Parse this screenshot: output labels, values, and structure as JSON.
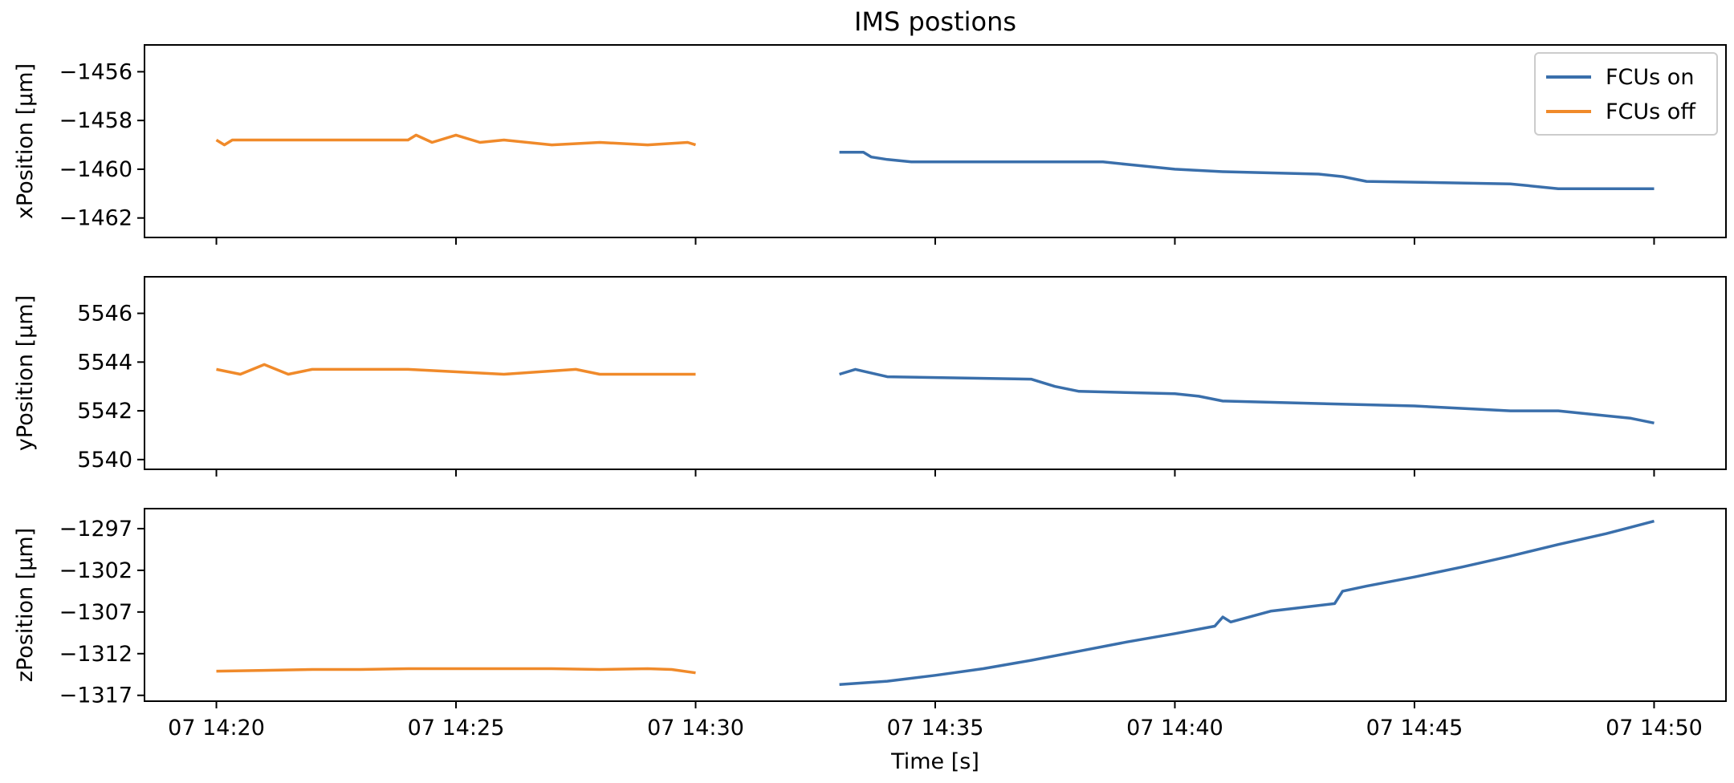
{
  "chart_data": {
    "type": "line",
    "title": "IMS postions",
    "xlabel": "Time [s]",
    "x_ticks": [
      "07 14:20",
      "07 14:25",
      "07 14:30",
      "07 14:35",
      "07 14:40",
      "07 14:45",
      "07 14:50"
    ],
    "x_tick_values": [
      "2000-01-07T14:20",
      "2000-01-07T14:25",
      "2000-01-07T14:30",
      "2000-01-07T14:35",
      "2000-01-07T14:40",
      "2000-01-07T14:45",
      "2000-01-07T14:50"
    ],
    "xlim": [
      "2000-01-07T14:18:30",
      "2000-01-07T14:51:30"
    ],
    "sharex": true,
    "grid": false,
    "legend": {
      "placement": "top-right",
      "entries": [
        {
          "name": "FCUs on",
          "color": "#3a6fab"
        },
        {
          "name": "FCUs off",
          "color": "#f08a2a"
        }
      ]
    },
    "panels": [
      {
        "ylabel": "xPosition [μm]",
        "yticks": [
          -1456,
          -1458,
          -1460,
          -1462
        ],
        "ylim": [
          -1462.8,
          -1454.9
        ],
        "series": [
          {
            "name": "FCUs off",
            "x": [
              "2000-01-07T14:20:00",
              "2000-01-07T14:20:10",
              "2000-01-07T14:20:20",
              "2000-01-07T14:24:00",
              "2000-01-07T14:24:10",
              "2000-01-07T14:24:30",
              "2000-01-07T14:25:00",
              "2000-01-07T14:25:30",
              "2000-01-07T14:26:00",
              "2000-01-07T14:27:00",
              "2000-01-07T14:28:00",
              "2000-01-07T14:29:00",
              "2000-01-07T14:29:50",
              "2000-01-07T14:30:00"
            ],
            "y": [
              -1458.8,
              -1459.0,
              -1458.8,
              -1458.8,
              -1458.6,
              -1458.9,
              -1458.6,
              -1458.9,
              -1458.8,
              -1459.0,
              -1458.9,
              -1459.0,
              -1458.9,
              -1459.0
            ]
          },
          {
            "name": "FCUs on",
            "x": [
              "2000-01-07T14:33:00",
              "2000-01-07T14:33:30",
              "2000-01-07T14:33:40",
              "2000-01-07T14:34:00",
              "2000-01-07T14:34:30",
              "2000-01-07T14:38:30",
              "2000-01-07T14:39:00",
              "2000-01-07T14:40:00",
              "2000-01-07T14:41:00",
              "2000-01-07T14:43:00",
              "2000-01-07T14:43:30",
              "2000-01-07T14:44:00",
              "2000-01-07T14:47:00",
              "2000-01-07T14:47:30",
              "2000-01-07T14:48:00",
              "2000-01-07T14:50:00"
            ],
            "y": [
              -1459.3,
              -1459.3,
              -1459.5,
              -1459.6,
              -1459.7,
              -1459.7,
              -1459.8,
              -1460.0,
              -1460.1,
              -1460.2,
              -1460.3,
              -1460.5,
              -1460.6,
              -1460.7,
              -1460.8,
              -1460.8
            ]
          }
        ]
      },
      {
        "ylabel": "yPosition [μm]",
        "yticks": [
          5546,
          5544,
          5542,
          5540
        ],
        "ylim": [
          5539.6,
          5547.5
        ],
        "series": [
          {
            "name": "FCUs off",
            "x": [
              "2000-01-07T14:20:00",
              "2000-01-07T14:20:30",
              "2000-01-07T14:21:00",
              "2000-01-07T14:21:30",
              "2000-01-07T14:22:00",
              "2000-01-07T14:24:00",
              "2000-01-07T14:26:00",
              "2000-01-07T14:27:30",
              "2000-01-07T14:28:00",
              "2000-01-07T14:30:00"
            ],
            "y": [
              5543.7,
              5543.5,
              5543.9,
              5543.5,
              5543.7,
              5543.7,
              5543.5,
              5543.7,
              5543.5,
              5543.5
            ]
          },
          {
            "name": "FCUs on",
            "x": [
              "2000-01-07T14:33:00",
              "2000-01-07T14:33:20",
              "2000-01-07T14:34:00",
              "2000-01-07T14:37:00",
              "2000-01-07T14:37:30",
              "2000-01-07T14:38:00",
              "2000-01-07T14:40:00",
              "2000-01-07T14:40:30",
              "2000-01-07T14:41:00",
              "2000-01-07T14:43:00",
              "2000-01-07T14:45:00",
              "2000-01-07T14:47:00",
              "2000-01-07T14:48:00",
              "2000-01-07T14:49:00",
              "2000-01-07T14:49:30",
              "2000-01-07T14:50:00"
            ],
            "y": [
              5543.5,
              5543.7,
              5543.4,
              5543.3,
              5543.0,
              5542.8,
              5542.7,
              5542.6,
              5542.4,
              5542.3,
              5542.2,
              5542.0,
              5542.0,
              5541.8,
              5541.7,
              5541.5
            ]
          }
        ]
      },
      {
        "ylabel": "zPosition [μm]",
        "yticks": [
          -1297,
          -1302,
          -1307,
          -1312,
          -1317
        ],
        "ylim": [
          -1317.7,
          -1294.6
        ],
        "series": [
          {
            "name": "FCUs off",
            "x": [
              "2000-01-07T14:20:00",
              "2000-01-07T14:21:00",
              "2000-01-07T14:22:00",
              "2000-01-07T14:23:00",
              "2000-01-07T14:24:00",
              "2000-01-07T14:25:00",
              "2000-01-07T14:26:00",
              "2000-01-07T14:27:00",
              "2000-01-07T14:28:00",
              "2000-01-07T14:29:00",
              "2000-01-07T14:29:30",
              "2000-01-07T14:30:00"
            ],
            "y": [
              -1314.1,
              -1314.0,
              -1313.9,
              -1313.9,
              -1313.8,
              -1313.8,
              -1313.8,
              -1313.8,
              -1313.9,
              -1313.8,
              -1313.9,
              -1314.3
            ]
          },
          {
            "name": "FCUs on",
            "x": [
              "2000-01-07T14:33:00",
              "2000-01-07T14:34:00",
              "2000-01-07T14:35:00",
              "2000-01-07T14:36:00",
              "2000-01-07T14:37:00",
              "2000-01-07T14:38:00",
              "2000-01-07T14:39:00",
              "2000-01-07T14:40:00",
              "2000-01-07T14:40:50",
              "2000-01-07T14:41:00",
              "2000-01-07T14:41:10",
              "2000-01-07T14:42:00",
              "2000-01-07T14:43:20",
              "2000-01-07T14:43:30",
              "2000-01-07T14:44:00",
              "2000-01-07T14:45:00",
              "2000-01-07T14:46:00",
              "2000-01-07T14:47:00",
              "2000-01-07T14:48:00",
              "2000-01-07T14:49:00",
              "2000-01-07T14:50:00"
            ],
            "y": [
              -1315.7,
              -1315.3,
              -1314.6,
              -1313.8,
              -1312.8,
              -1311.7,
              -1310.6,
              -1309.6,
              -1308.7,
              -1307.6,
              -1308.2,
              -1306.9,
              -1306.0,
              -1304.5,
              -1303.9,
              -1302.8,
              -1301.6,
              -1300.3,
              -1298.9,
              -1297.6,
              -1296.1
            ]
          }
        ]
      }
    ]
  }
}
